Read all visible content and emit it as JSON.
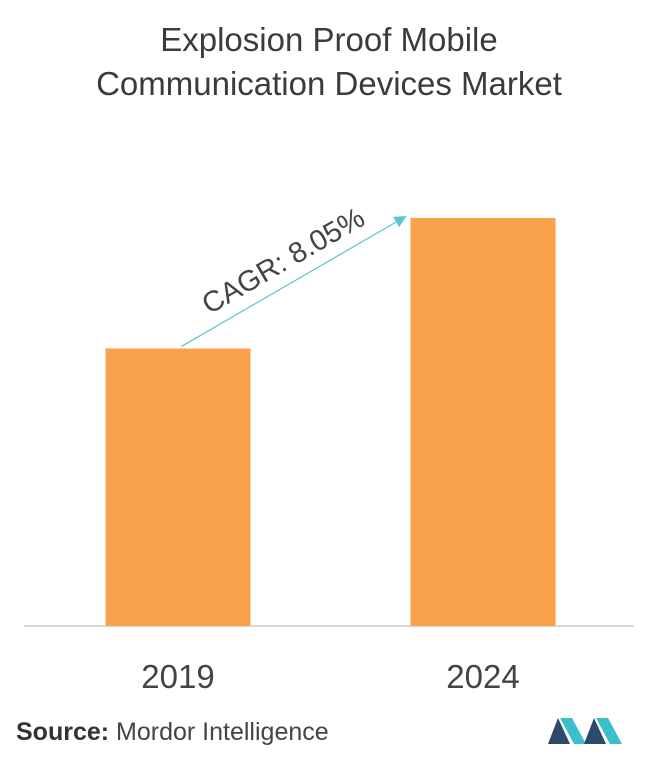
{
  "title_lines": [
    "Explosion Proof Mobile",
    "Communication Devices Market"
  ],
  "source": {
    "label": "Source:",
    "name": "Mordor Intelligence"
  },
  "logo": "mordor-intelligence-logo",
  "colors": {
    "bar": "#F9A24B",
    "arrow": "#5BC5D3",
    "axis": "#cccccc",
    "logo_dark": "#2E4A6B",
    "logo_light": "#3BBFCB"
  },
  "chart_data": {
    "type": "bar",
    "categories": [
      "2019",
      "2024"
    ],
    "values": [
      1.0,
      1.47
    ],
    "annotation": "CAGR: 8.05%",
    "title": "Explosion Proof Mobile Communication Devices Market",
    "xlabel": "",
    "ylabel": ""
  }
}
